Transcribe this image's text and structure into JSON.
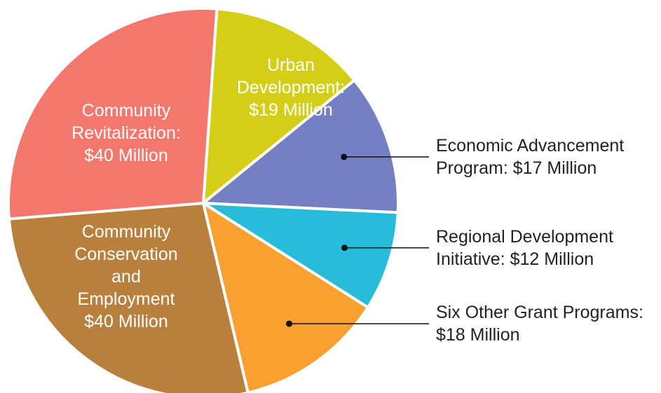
{
  "chart_data": {
    "type": "pie",
    "categories": [
      "Urban Development:",
      "Economic Advancement Program:",
      "Regional Development Initiative:",
      "Six Other Grant Programs:",
      "Community Conservation and Employment",
      "Community Revitalization:"
    ],
    "values": [
      19,
      17,
      12,
      18,
      40,
      40
    ],
    "value_labels": [
      "$19 Million",
      "$17 Million",
      "$12 Million",
      "$18 Million",
      "$40 Million",
      "$40 Million"
    ],
    "colors": [
      "#d4cf16",
      "#7480c2",
      "#27bcd9",
      "#f9a031",
      "#b8803c",
      "#f4776e"
    ]
  }
}
